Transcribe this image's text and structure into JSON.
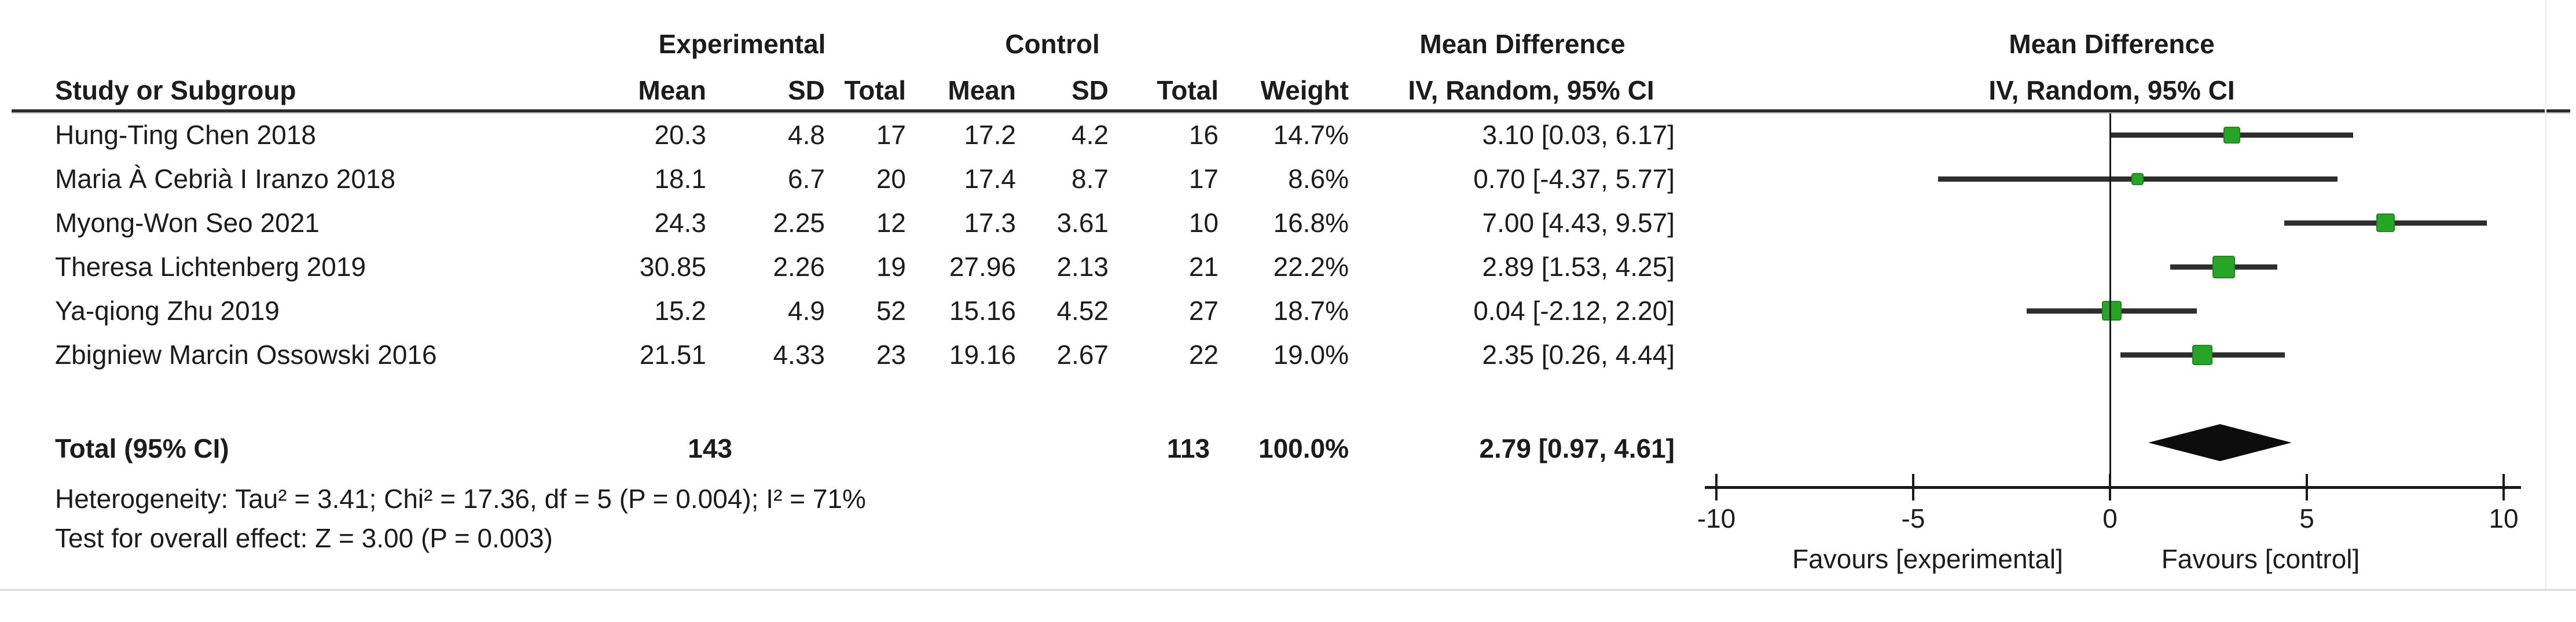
{
  "header": {
    "experimental": "Experimental",
    "control": "Control",
    "mean_difference_table": "Mean Difference",
    "mean_difference_plot": "Mean Difference",
    "study_or_subgroup": "Study or Subgroup",
    "mean": "Mean",
    "sd": "SD",
    "total": "Total",
    "weight": "Weight",
    "iv_random_table": "IV, Random, 95% CI",
    "iv_random_plot": "IV, Random, 95% CI"
  },
  "colors": {
    "marker_green": "#27a527",
    "marker_border": "#1d8a1d",
    "ci_line": "#2e2e2e",
    "diamond": "#0d0d0d",
    "text": "#1c1c1c"
  },
  "chart_data": {
    "type": "forest",
    "effect_measure": "Mean Difference, IV, Random, 95% CI",
    "x_axis": {
      "min": -10,
      "max": 10,
      "ticks": [
        -10,
        -5,
        0,
        5,
        10
      ],
      "tick_labels": [
        "-10",
        "-5",
        "0",
        "5",
        "10"
      ]
    },
    "studies": [
      {
        "name": "Hung-Ting Chen 2018",
        "exp_mean": "20.3",
        "exp_sd": "4.8",
        "exp_total": "17",
        "ctl_mean": "17.2",
        "ctl_sd": "4.2",
        "ctl_total": "16",
        "weight": "14.7%",
        "weight_pct": 14.7,
        "md_label": "3.10 [0.03, 6.17]",
        "md": 3.1,
        "ci_low": 0.03,
        "ci_high": 6.17
      },
      {
        "name": "Maria À Cebrià I Iranzo 2018",
        "exp_mean": "18.1",
        "exp_sd": "6.7",
        "exp_total": "20",
        "ctl_mean": "17.4",
        "ctl_sd": "8.7",
        "ctl_total": "17",
        "weight": "8.6%",
        "weight_pct": 8.6,
        "md_label": "0.70 [-4.37, 5.77]",
        "md": 0.7,
        "ci_low": -4.37,
        "ci_high": 5.77
      },
      {
        "name": "Myong-Won Seo 2021",
        "exp_mean": "24.3",
        "exp_sd": "2.25",
        "exp_total": "12",
        "ctl_mean": "17.3",
        "ctl_sd": "3.61",
        "ctl_total": "10",
        "weight": "16.8%",
        "weight_pct": 16.8,
        "md_label": "7.00 [4.43, 9.57]",
        "md": 7.0,
        "ci_low": 4.43,
        "ci_high": 9.57
      },
      {
        "name": "Theresa Lichtenberg 2019",
        "exp_mean": "30.85",
        "exp_sd": "2.26",
        "exp_total": "19",
        "ctl_mean": "27.96",
        "ctl_sd": "2.13",
        "ctl_total": "21",
        "weight": "22.2%",
        "weight_pct": 22.2,
        "md_label": "2.89 [1.53, 4.25]",
        "md": 2.89,
        "ci_low": 1.53,
        "ci_high": 4.25
      },
      {
        "name": "Ya-qiong Zhu 2019",
        "exp_mean": "15.2",
        "exp_sd": "4.9",
        "exp_total": "52",
        "ctl_mean": "15.16",
        "ctl_sd": "4.52",
        "ctl_total": "27",
        "weight": "18.7%",
        "weight_pct": 18.7,
        "md_label": "0.04 [-2.12, 2.20]",
        "md": 0.04,
        "ci_low": -2.12,
        "ci_high": 2.2
      },
      {
        "name": "Zbigniew Marcin Ossowski 2016",
        "exp_mean": "21.51",
        "exp_sd": "4.33",
        "exp_total": "23",
        "ctl_mean": "19.16",
        "ctl_sd": "2.67",
        "ctl_total": "22",
        "weight": "19.0%",
        "weight_pct": 19.0,
        "md_label": "2.35 [0.26, 4.44]",
        "md": 2.35,
        "ci_low": 0.26,
        "ci_high": 4.44
      }
    ],
    "total": {
      "label": "Total (95% CI)",
      "exp_total": "143",
      "ctl_total": "113",
      "weight": "100.0%",
      "md_label": "2.79 [0.97, 4.61]",
      "md": 2.79,
      "ci_low": 0.97,
      "ci_high": 4.61
    },
    "heterogeneity": "Heterogeneity: Tau² = 3.41; Chi² = 17.36, df = 5 (P = 0.004); I² = 71%",
    "overall_effect": "Test for overall effect: Z = 3.00 (P = 0.003)",
    "favours_left": "Favours [experimental]",
    "favours_right": "Favours [control]"
  }
}
